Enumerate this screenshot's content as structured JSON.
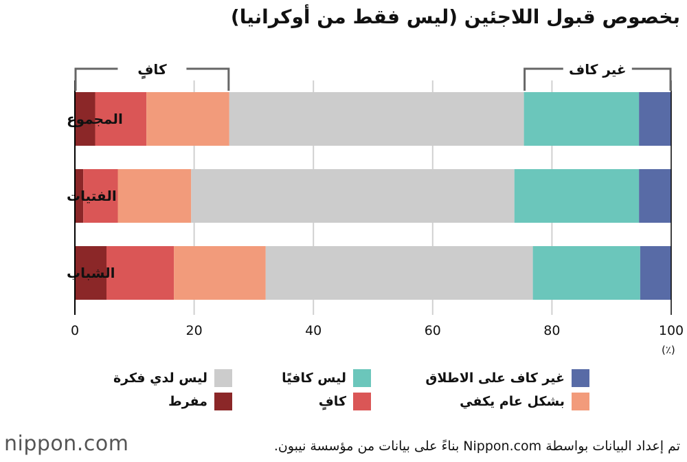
{
  "chart_data": {
    "type": "bar",
    "orientation": "horizontal",
    "stacked": true,
    "title": "بخصوص قبول اللاجئين (ليس فقط من أوكرانيا)",
    "categories": [
      "المجموع",
      "الفتيات",
      "الشباب"
    ],
    "xlim": [
      0,
      100
    ],
    "xticks": [
      "0",
      "20",
      "40",
      "60",
      "80",
      "100"
    ],
    "unit": "(٪)",
    "grid": true,
    "series": [
      {
        "name": "مفرط",
        "color": "#8b2728",
        "values": [
          3.4,
          1.4,
          5.3
        ]
      },
      {
        "name": "كافٍ",
        "color": "#da5656",
        "values": [
          8.6,
          5.8,
          11.3
        ]
      },
      {
        "name": "بشكل عام يكفي",
        "color": "#f29b7b",
        "values": [
          13.9,
          12.3,
          15.4
        ]
      },
      {
        "name": "ليس لدي فكرة",
        "color": "#cccccc",
        "values": [
          49.4,
          54.2,
          44.8
        ]
      },
      {
        "name": "ليس كافيًا",
        "color": "#6bc6bb",
        "values": [
          19.3,
          20.9,
          18.0
        ]
      },
      {
        "name": "غير كاف على الاطلاق",
        "color": "#586ba6",
        "values": [
          5.4,
          5.4,
          5.2
        ]
      }
    ],
    "brackets": [
      {
        "label": "كافٍ",
        "from": 0,
        "to": 25.9
      },
      {
        "label": "غير كاف",
        "from": 75.3,
        "to": 100
      }
    ]
  },
  "footer": {
    "source": "تم إعداد البيانات بواسطة Nippon.com بناءً على بيانات من مؤسسة نيبون.",
    "logo": "nippon.com"
  }
}
